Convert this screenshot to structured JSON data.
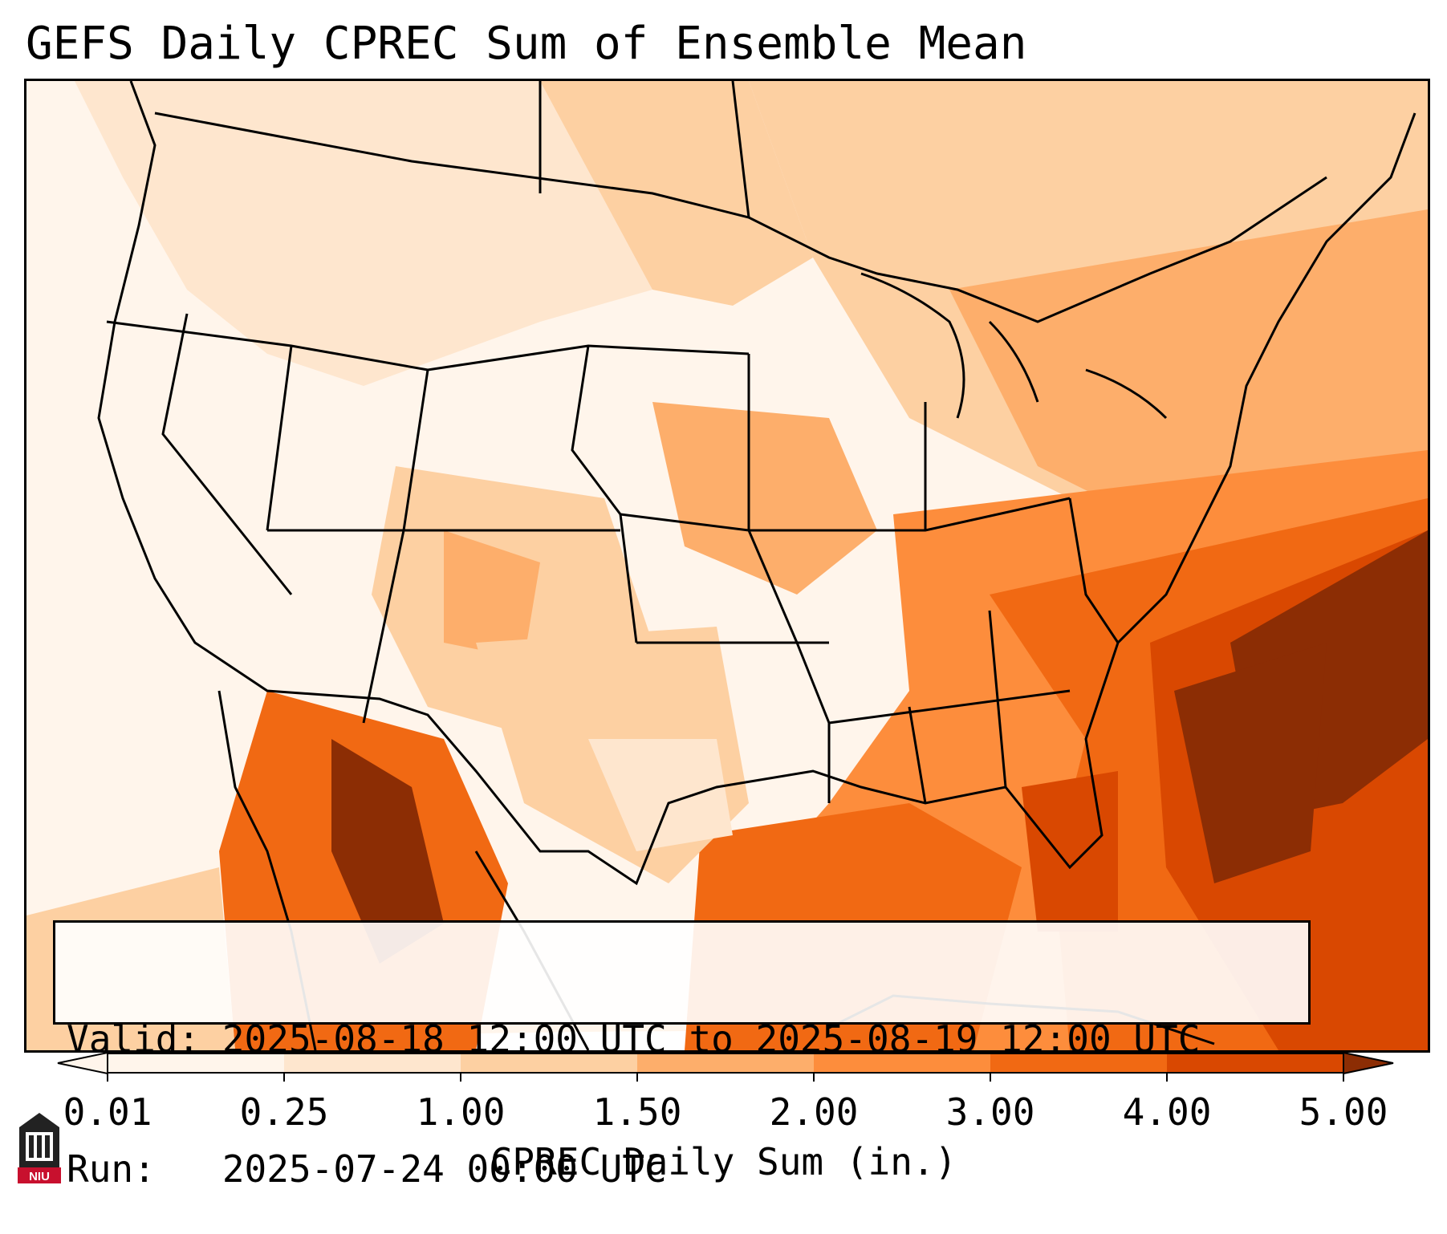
{
  "title": "GEFS Daily CPREC Sum of Ensemble Mean",
  "info": {
    "valid_line": "Valid: 2025-08-18 12:00 UTC to 2025-08-19 12:00 UTC",
    "run_line": "Run:   2025-07-24 00:00 UTC"
  },
  "colorbar": {
    "label": "CPREC Daily Sum (in.)",
    "ticks": [
      "0.01",
      "0.25",
      "1.00",
      "1.50",
      "2.00",
      "3.00",
      "4.00",
      "5.00"
    ],
    "colors": [
      "#fff5eb",
      "#fee6ce",
      "#fdd0a2",
      "#fdae6b",
      "#fd8d3c",
      "#f16913",
      "#d94801",
      "#8c2d04"
    ],
    "extend": "both"
  },
  "logo": {
    "text": "NIU"
  },
  "palette": {
    "level0": "#fff5eb",
    "level1": "#fee6ce",
    "level2": "#fdd0a2",
    "level3": "#fdae6b",
    "level4": "#fd8d3c",
    "level5": "#f16913",
    "level6": "#d94801",
    "level7": "#8c2d04"
  }
}
